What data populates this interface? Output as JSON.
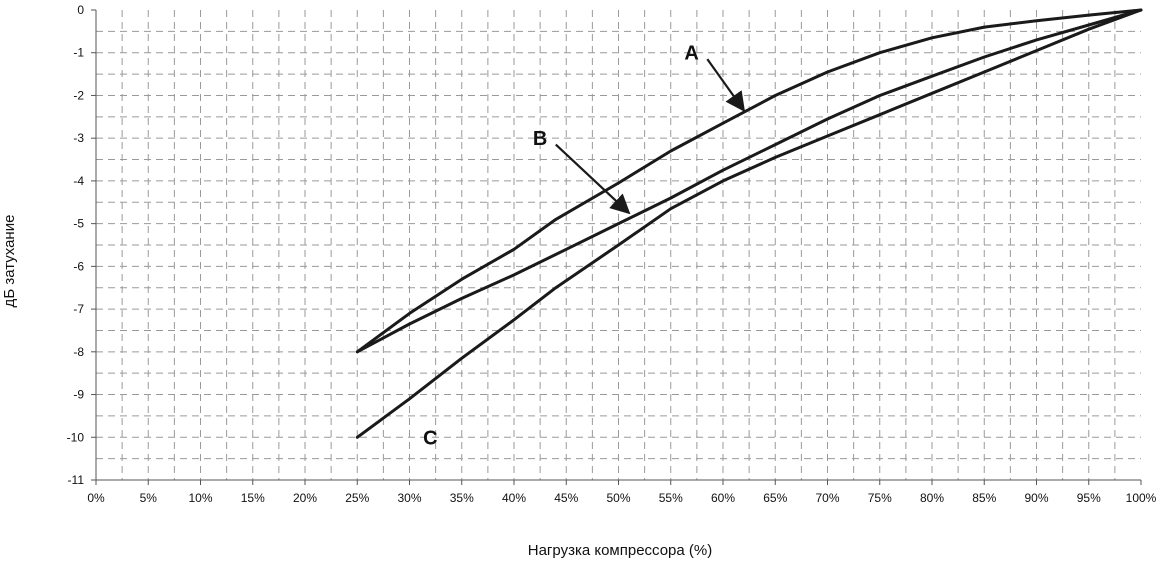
{
  "chart_data": {
    "type": "line",
    "xlabel": "Нагрузка компрессора (%)",
    "ylabel": "дБ затухание",
    "xlim": [
      0,
      100
    ],
    "ylim": [
      -11,
      0
    ],
    "x_ticks": [
      0,
      5,
      10,
      15,
      20,
      25,
      30,
      35,
      40,
      45,
      50,
      55,
      60,
      65,
      70,
      75,
      80,
      85,
      90,
      95,
      100
    ],
    "x_tick_labels": [
      "0%",
      "5%",
      "10%",
      "15%",
      "20%",
      "25%",
      "30%",
      "35%",
      "40%",
      "45%",
      "50%",
      "55%",
      "60%",
      "65%",
      "70%",
      "75%",
      "80%",
      "85%",
      "90%",
      "95%",
      "100%"
    ],
    "y_ticks": [
      0,
      -1,
      -2,
      -3,
      -4,
      -5,
      -6,
      -7,
      -8,
      -9,
      -10,
      -11
    ],
    "y_tick_labels": [
      "0",
      "-1",
      "-2",
      "-3",
      "-4",
      "-5",
      "-6",
      "-7",
      "-8",
      "-9",
      "-10",
      "-11"
    ],
    "grid": "dashed",
    "series": [
      {
        "name": "A",
        "color": "#1a1a1a",
        "x": [
          25,
          30,
          35,
          40,
          44,
          50,
          55,
          60,
          65,
          70,
          75,
          80,
          85,
          90,
          95,
          100
        ],
        "y": [
          -8.0,
          -7.1,
          -6.3,
          -5.6,
          -4.9,
          -4.05,
          -3.3,
          -2.65,
          -2.0,
          -1.45,
          -1.0,
          -0.65,
          -0.4,
          -0.25,
          -0.12,
          0.0
        ]
      },
      {
        "name": "B",
        "color": "#1a1a1a",
        "x": [
          25,
          30,
          35,
          40,
          45,
          50,
          55,
          60,
          65,
          70,
          75,
          80,
          85,
          90,
          95,
          100
        ],
        "y": [
          -8.0,
          -7.35,
          -6.75,
          -6.2,
          -5.6,
          -5.0,
          -4.4,
          -3.75,
          -3.15,
          -2.55,
          -2.0,
          -1.55,
          -1.1,
          -0.7,
          -0.35,
          0.0
        ]
      },
      {
        "name": "C",
        "color": "#1a1a1a",
        "x": [
          25,
          30,
          35,
          40,
          44,
          50,
          55,
          60,
          65,
          70,
          75,
          80,
          85,
          90,
          95,
          100
        ],
        "y": [
          -10.0,
          -9.1,
          -8.15,
          -7.25,
          -6.5,
          -5.5,
          -4.65,
          -4.0,
          -3.45,
          -2.95,
          -2.45,
          -1.95,
          -1.45,
          -0.95,
          -0.45,
          0.0
        ]
      }
    ],
    "annotations": [
      {
        "label": "A",
        "text_at": [
          57,
          -1.0
        ],
        "arrow_from": [
          58.5,
          -1.15
        ],
        "arrow_to": [
          62,
          -2.35
        ]
      },
      {
        "label": "B",
        "text_at": [
          42.5,
          -3.0
        ],
        "arrow_from": [
          44,
          -3.15
        ],
        "arrow_to": [
          51,
          -4.75
        ]
      },
      {
        "label": "C",
        "text_at": [
          32,
          -10.0
        ]
      }
    ]
  }
}
